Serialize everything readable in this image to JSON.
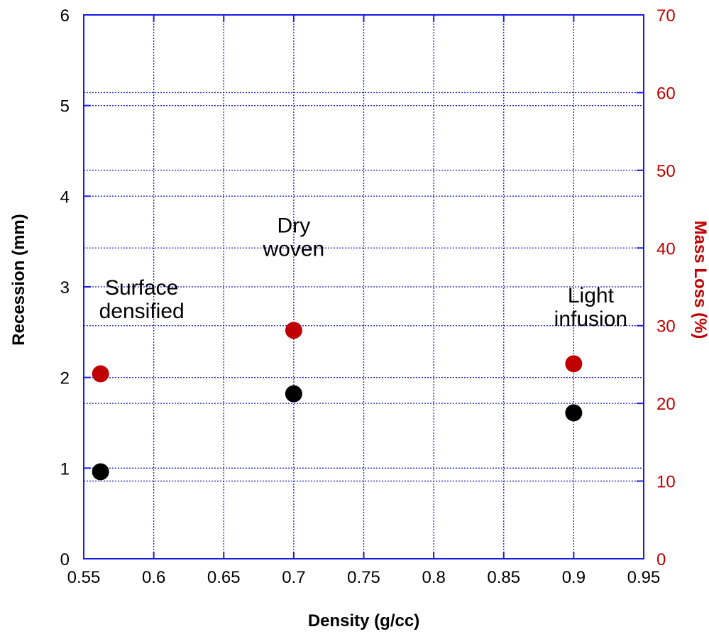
{
  "colors": {
    "frame": "#1a1adf",
    "grid": "#1a1adf",
    "left_series": "#000000",
    "right_series": "#c00000",
    "text": "#000000",
    "right_axis_text": "#c00000"
  },
  "chart_data": {
    "type": "scatter",
    "grid": true,
    "x": {
      "label": "Density  (g/cc)",
      "lim": [
        0.55,
        0.95
      ],
      "ticks": [
        "0.55",
        "0.6",
        "0.65",
        "0.7",
        "0.75",
        "0.8",
        "0.85",
        "0.9",
        "0.95"
      ]
    },
    "y_left": {
      "label": "Recession  (mm)",
      "lim": [
        0,
        6
      ],
      "ticks": [
        "0",
        "1",
        "2",
        "3",
        "4",
        "5",
        "6"
      ]
    },
    "y_right": {
      "label": "Mass  Loss  (%)",
      "lim": [
        0,
        70
      ],
      "ticks": [
        "0",
        "10",
        "20",
        "30",
        "40",
        "50",
        "60",
        "70"
      ]
    },
    "series": [
      {
        "axis": "left",
        "x": [
          0.562,
          0.7,
          0.9
        ],
        "y": [
          0.96,
          1.82,
          1.61
        ]
      },
      {
        "axis": "right",
        "x": [
          0.562,
          0.7,
          0.9
        ],
        "y": [
          23.8,
          29.4,
          25.1
        ]
      }
    ],
    "annotations": [
      {
        "lines": [
          "Surface",
          "densified"
        ],
        "x": 0.562,
        "y_right": 34
      },
      {
        "lines": [
          "Dry",
          "woven"
        ],
        "x": 0.7,
        "y_right": 42
      },
      {
        "lines": [
          "Light",
          "infusion"
        ],
        "x": 0.9,
        "y_right": 33
      }
    ]
  }
}
